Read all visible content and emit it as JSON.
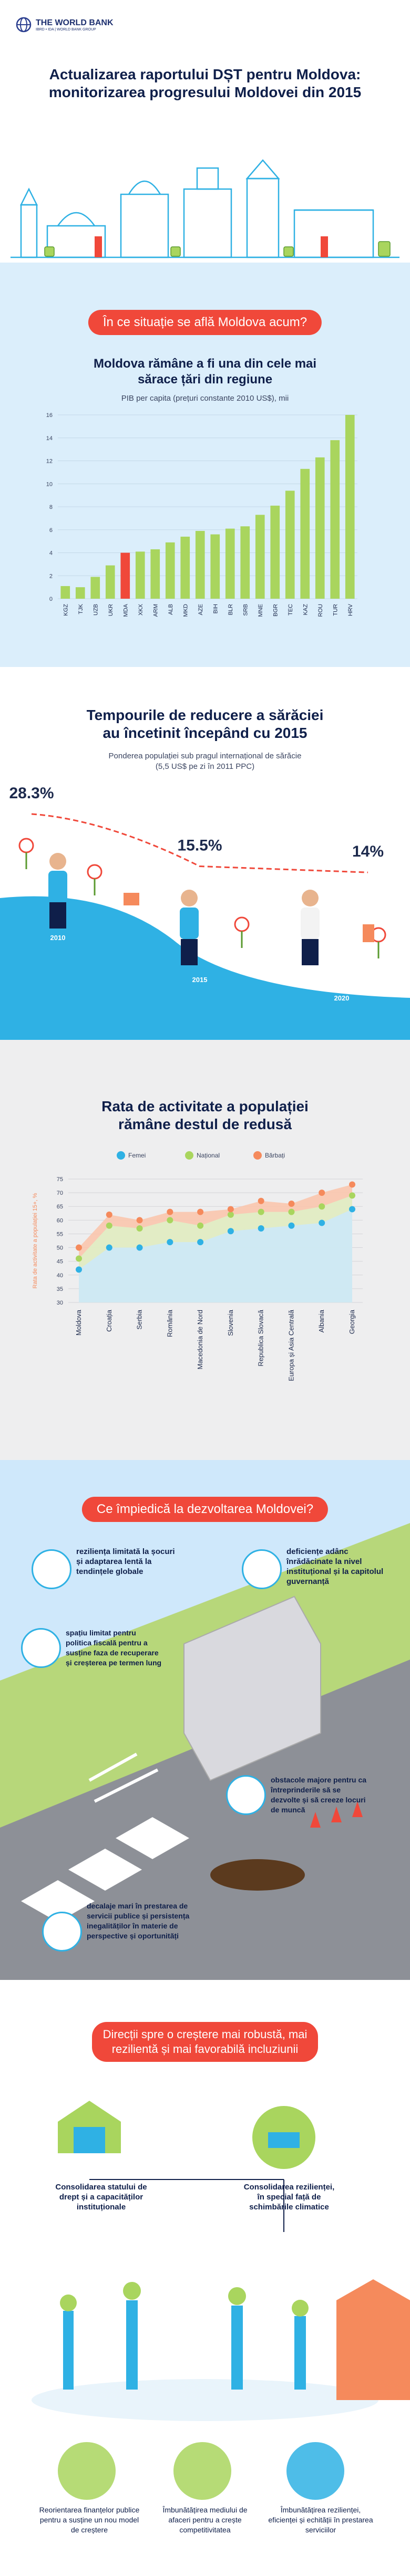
{
  "brand": {
    "name": "THE WORLD BANK",
    "tagline": "IBRD • IDA | WORLD BANK GROUP"
  },
  "header": {
    "title": "Actualizarea raportului DȘT pentru Moldova: monitorizarea progresului Moldovei din 2015"
  },
  "section1": {
    "pill": "În ce situație se află Moldova acum?"
  },
  "gdp": {
    "title": "Moldova rămâne a fi una din cele mai sărace țări din regiune",
    "subtitle": "PIB per capita (prețuri constante 2010 US$), mii"
  },
  "poverty": {
    "title": "Tempourile de reducere a sărăciei au încetinit începând cu 2015",
    "subtitle": "Ponderea populației sub pragul internațional de sărăcie (5,5 US$ pe zi în 2011 PPC)"
  },
  "activity": {
    "title": "Rata de activitate a populației rămâne destul de redusă"
  },
  "section2": {
    "pill": "Ce împiedică la dezvoltarea Moldovei?",
    "items": [
      "reziliența limitată la șocuri și adaptarea lentă la tendințele globale",
      "deficiențe adânc înrădăcinate la nivel instituțional și la capitolul guvernanță",
      "spațiu limitat pentru politica fiscală pentru a susține faza de recuperare și creșterea pe termen lung",
      "obstacole majore pentru ca întreprinderile să se dezvolte și să creeze locuri de muncă",
      "decalaje mari în prestarea de servicii publice și persistența inegalităților în materie de perspective și oportunități"
    ]
  },
  "section3": {
    "pill": "Direcții spre o creștere mai robustă, mai rezilientă și mai favorabilă incluziunii",
    "top": [
      "Consolidarea statului de drept și a capacităților instituționale",
      "Consolidarea rezilienței, în special față de schimbările climatice"
    ],
    "bottom": [
      "Reorientarea finanțelor publice pentru a susține un nou model de creștere",
      "Îmbunătățirea mediului de afaceri pentru a crește competitivitatea",
      "Îmbunătățirea rezilienței, eficienței și echității în prestarea serviciilor"
    ]
  },
  "colors": {
    "coral": "#f0483a",
    "green": "#a9d55e",
    "blue": "#2fb1e4",
    "navy": "#0f1f4a",
    "orange": "#f58a5c",
    "sky": "#cfe8fb"
  },
  "chart_data": [
    {
      "type": "bar",
      "title": "Moldova rămâne a fi una din cele mai sărace țări din regiune",
      "subtitle": "PIB per capita (prețuri constante 2010 US$), mii",
      "categories": [
        "KGZ",
        "TJK",
        "UZB",
        "UKR",
        "MDA",
        "XKX",
        "ARM",
        "ALB",
        "MKD",
        "AZE",
        "BIH",
        "BLR",
        "SRB",
        "MNE",
        "BGR",
        "TEC",
        "KAZ",
        "ROU",
        "TUR",
        "HRV"
      ],
      "values": [
        1.1,
        1.0,
        1.9,
        2.9,
        4.0,
        4.1,
        4.3,
        4.9,
        5.4,
        5.9,
        5.6,
        6.1,
        6.3,
        7.3,
        8.1,
        9.4,
        11.3,
        12.3,
        13.8,
        16.0
      ],
      "highlight": "MDA",
      "ylim": [
        0,
        16
      ],
      "yticks": [
        0,
        2,
        4,
        6,
        8,
        10,
        12,
        14,
        16
      ]
    },
    {
      "type": "line",
      "title": "Tempourile de reducere a sărăciei au încetinit începând cu 2015",
      "x": [
        "2010",
        "2015",
        "2020"
      ],
      "values": [
        28.3,
        15.5,
        14
      ],
      "labels": [
        "28.3%",
        "15.5%",
        "14%"
      ]
    },
    {
      "type": "area",
      "title": "Rata de activitate a populației rămâne destul de redusă",
      "ylabel": "Rata de activitate a populației 15+, %",
      "categories": [
        "Moldova",
        "Croația",
        "Serbia",
        "România",
        "Macedonia de Nord",
        "Slovenia",
        "Republica Slovacă",
        "Europa și Asia Centrală",
        "Albania",
        "Georgia"
      ],
      "series": [
        {
          "name": "Femei",
          "values": [
            42,
            50,
            50,
            52,
            52,
            56,
            57,
            58,
            59,
            64
          ]
        },
        {
          "name": "Național",
          "values": [
            46,
            58,
            57,
            60,
            58,
            62,
            63,
            63,
            65,
            69
          ]
        },
        {
          "name": "Bărbați",
          "values": [
            50,
            62,
            60,
            63,
            63,
            64,
            67,
            66,
            70,
            73
          ]
        }
      ],
      "ylim": [
        30,
        75
      ],
      "yticks": [
        30,
        35,
        40,
        45,
        50,
        55,
        60,
        65,
        70,
        75
      ],
      "legend": "top"
    }
  ]
}
